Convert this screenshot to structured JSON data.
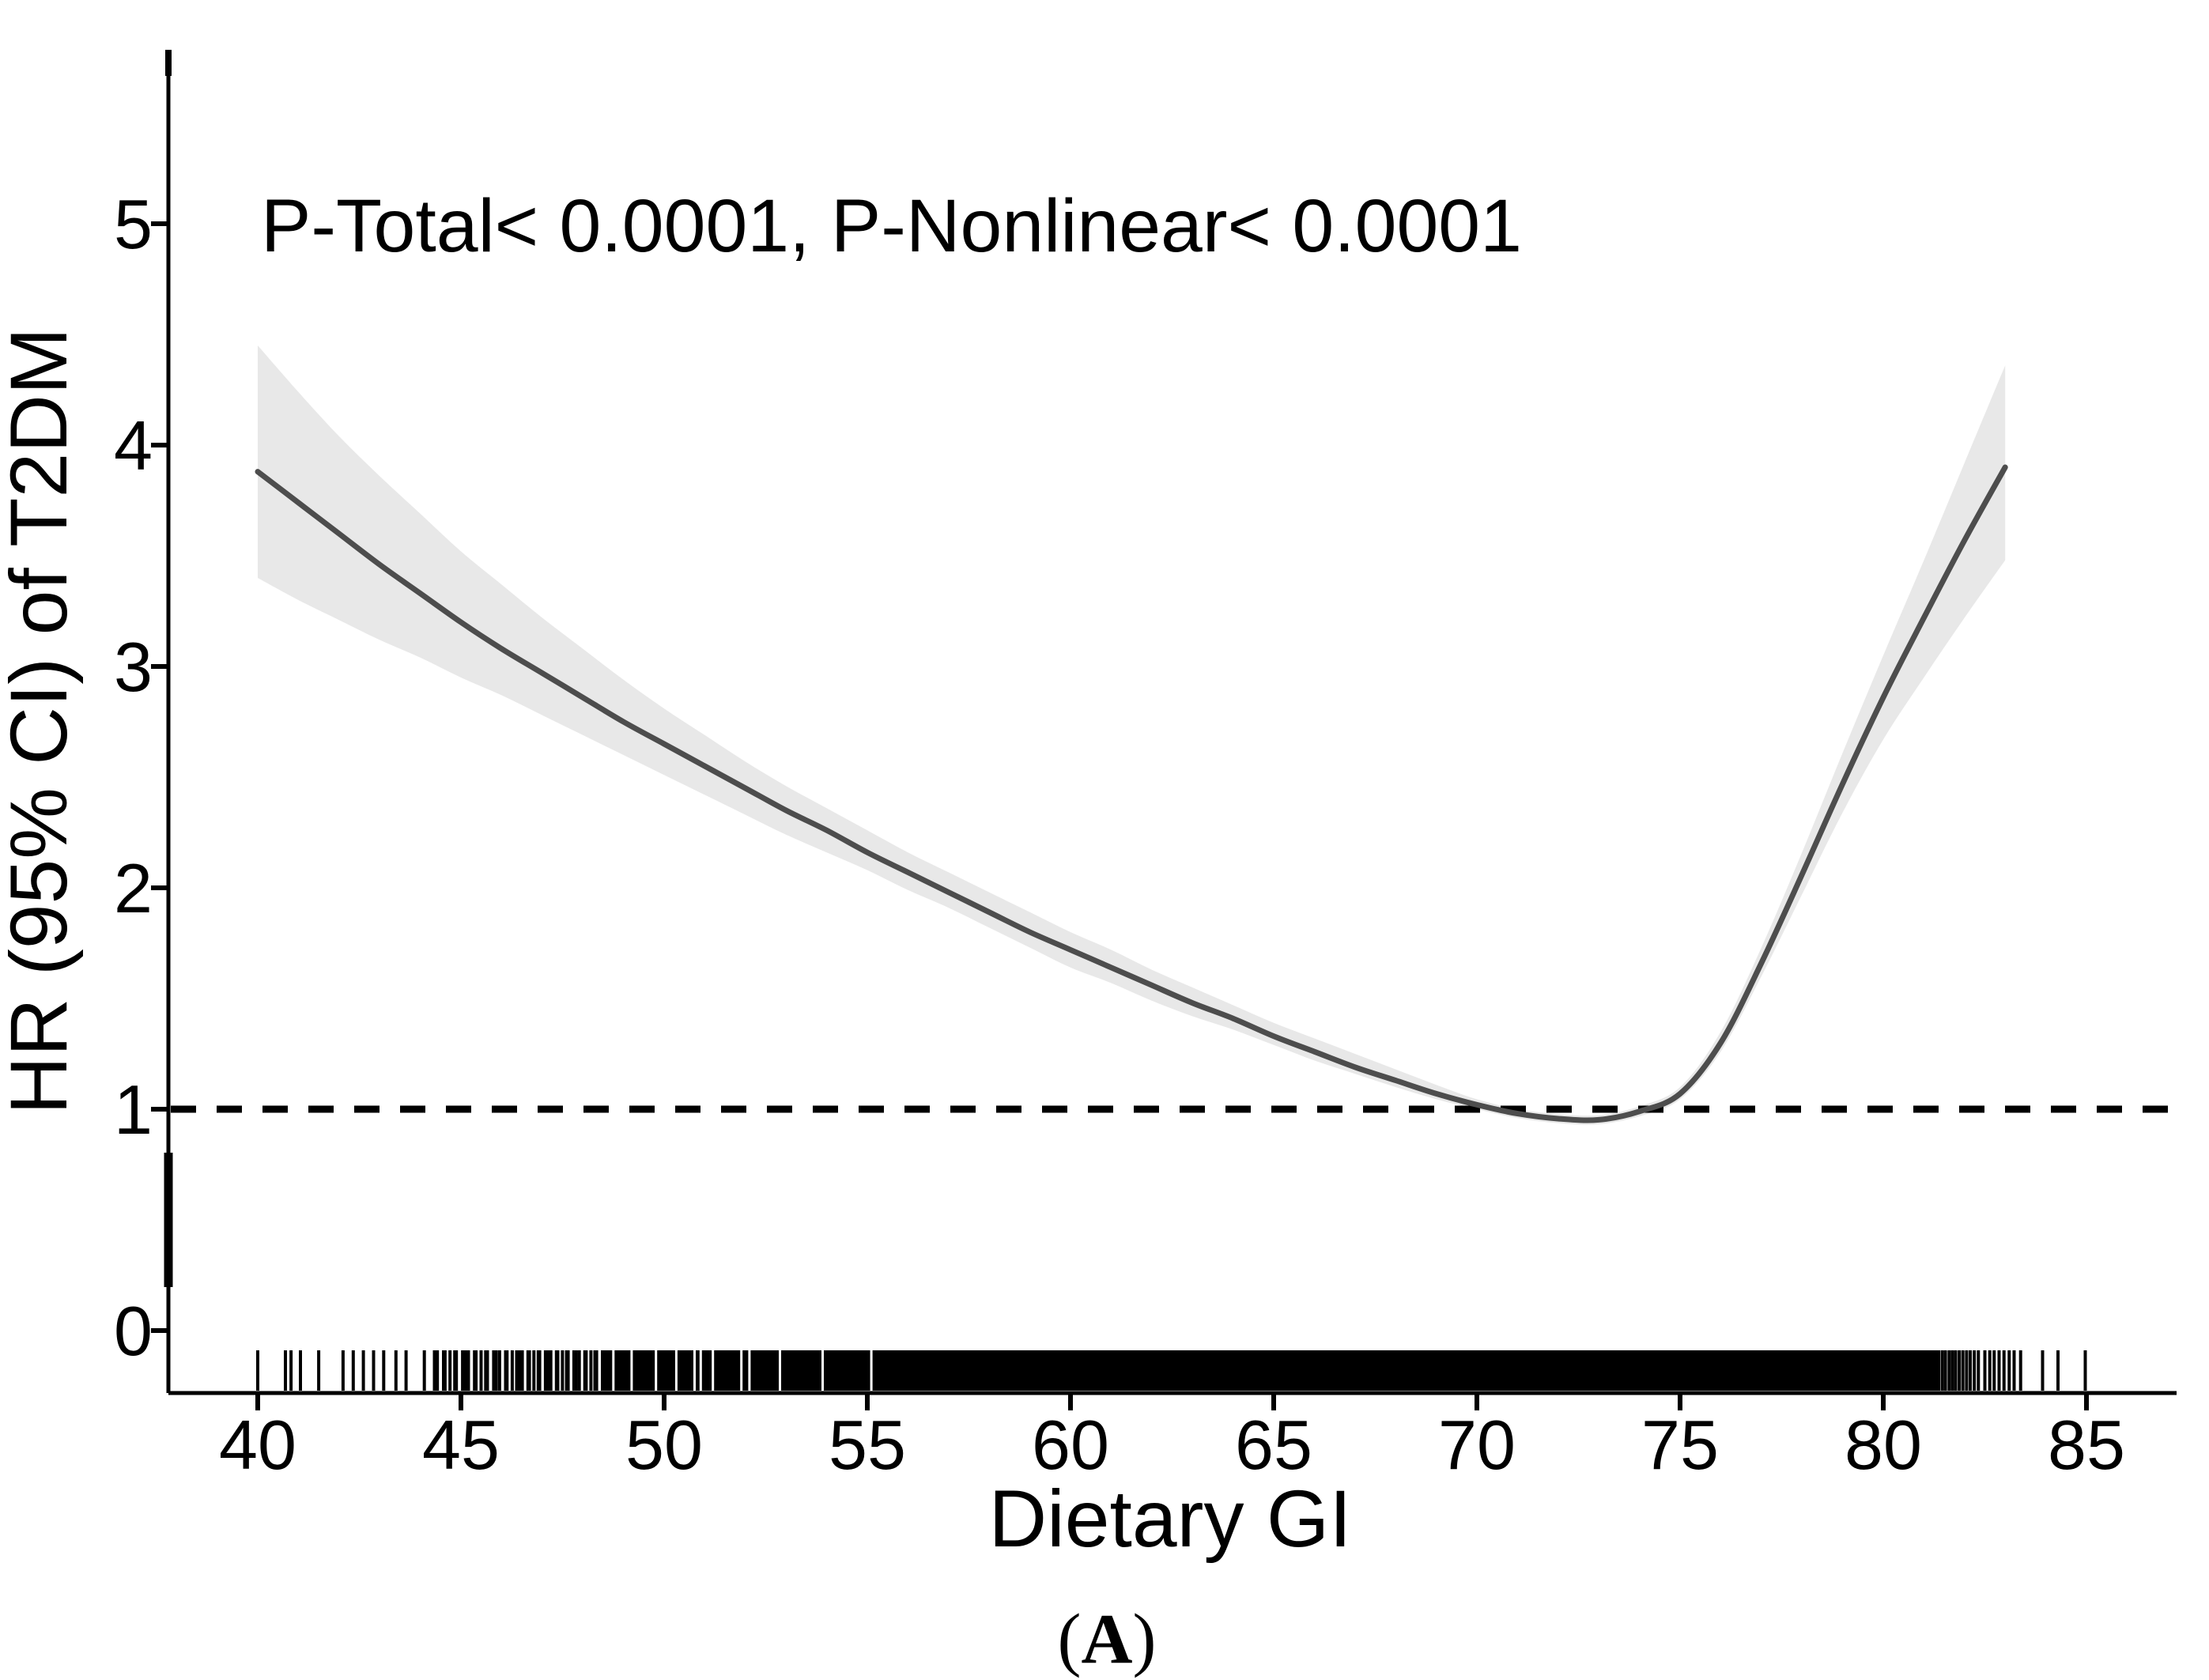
{
  "figure": {
    "caption_open": "(",
    "caption_letter": "A",
    "caption_close": ")"
  },
  "colors": {
    "curve": "#4d4d4d",
    "band": "#e8e8e8",
    "ink": "#000000",
    "background": "#ffffff"
  },
  "chart_data": {
    "type": "line",
    "title": "",
    "annotation": "P-Total< 0.0001, P-Nonlinear< 0.0001",
    "xlabel": "Dietary GI",
    "ylabel": "HR (95% CI) of T2DM",
    "x_ticks": [
      40,
      45,
      50,
      55,
      60,
      65,
      70,
      75,
      80,
      85
    ],
    "y_ticks": [
      0,
      1,
      2,
      3,
      4,
      5
    ],
    "xlim": [
      37.8,
      87.3
    ],
    "ylim": [
      -0.28,
      5.78
    ],
    "grid": false,
    "legend": false,
    "reference_line": {
      "y": 1,
      "style": "dashed"
    },
    "x": [
      40,
      41,
      42,
      43,
      44,
      45,
      46,
      47,
      48,
      49,
      50,
      51,
      52,
      53,
      54,
      55,
      56,
      57,
      58,
      59,
      60,
      61,
      62,
      63,
      64,
      65,
      66,
      67,
      68,
      69,
      70,
      71,
      72,
      73,
      74,
      75,
      76,
      77,
      78,
      79,
      80,
      81,
      82,
      83
    ],
    "hr": [
      3.88,
      3.74,
      3.6,
      3.46,
      3.33,
      3.2,
      3.08,
      2.97,
      2.86,
      2.75,
      2.65,
      2.55,
      2.45,
      2.35,
      2.26,
      2.16,
      2.07,
      1.98,
      1.89,
      1.8,
      1.72,
      1.64,
      1.56,
      1.48,
      1.41,
      1.33,
      1.26,
      1.19,
      1.13,
      1.07,
      1.02,
      0.98,
      0.957,
      0.952,
      0.99,
      1.07,
      1.3,
      1.66,
      2.06,
      2.47,
      2.86,
      3.22,
      3.57,
      3.9
    ],
    "ci_lower": [
      3.4,
      3.3,
      3.21,
      3.12,
      3.04,
      2.95,
      2.87,
      2.78,
      2.69,
      2.6,
      2.51,
      2.42,
      2.33,
      2.24,
      2.16,
      2.08,
      1.99,
      1.91,
      1.82,
      1.73,
      1.64,
      1.57,
      1.49,
      1.42,
      1.36,
      1.29,
      1.22,
      1.16,
      1.1,
      1.045,
      1.0,
      0.96,
      0.937,
      0.932,
      0.968,
      1.045,
      1.26,
      1.6,
      1.97,
      2.34,
      2.67,
      2.95,
      3.22,
      3.48
    ],
    "ci_upper": [
      4.45,
      4.24,
      4.04,
      3.86,
      3.69,
      3.52,
      3.37,
      3.22,
      3.08,
      2.94,
      2.81,
      2.69,
      2.57,
      2.46,
      2.36,
      2.26,
      2.16,
      2.07,
      1.98,
      1.89,
      1.8,
      1.72,
      1.63,
      1.55,
      1.47,
      1.39,
      1.32,
      1.25,
      1.18,
      1.11,
      1.045,
      1.0,
      0.978,
      0.973,
      1.013,
      1.1,
      1.35,
      1.73,
      2.16,
      2.61,
      3.05,
      3.48,
      3.92,
      4.36
    ],
    "rug": {
      "tick_values_left": [
        40.0,
        40.68,
        40.82,
        41.05,
        41.5,
        42.1,
        42.35,
        42.6,
        42.85,
        43.1,
        43.4,
        43.65,
        44.1
      ],
      "density_segments": [
        {
          "from": 44.3,
          "to": 46.4,
          "count": 22
        },
        {
          "from": 46.4,
          "to": 48.5,
          "count": 24
        }
      ],
      "solid_band": {
        "from": 48.5,
        "to": 81.4
      },
      "white_gaps": [
        48.75,
        49.2,
        49.8,
        50.3,
        50.75,
        50.9,
        51.2,
        51.9,
        52.1,
        52.85,
        53.9,
        55.1
      ],
      "tick_values_right": [
        81.45,
        81.53,
        81.62,
        81.7,
        81.78,
        81.87,
        81.96,
        82.05,
        82.14,
        82.24,
        82.34,
        82.5,
        82.62,
        82.73,
        82.85,
        82.97,
        83.1,
        83.22,
        83.38,
        83.92,
        84.3,
        84.97
      ]
    }
  }
}
